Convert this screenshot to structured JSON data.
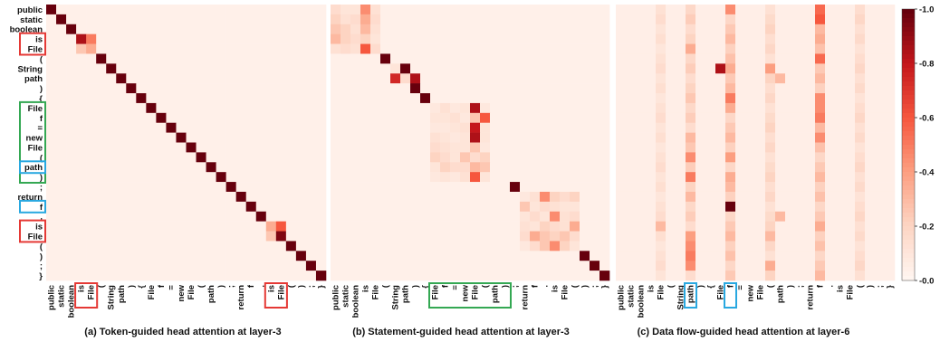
{
  "tokens": [
    "public",
    "static",
    "boolean",
    "is",
    "File",
    "(",
    "String",
    "path",
    ")",
    "{",
    "File",
    "f",
    "=",
    "new",
    "File",
    "(",
    "path",
    ")",
    ";",
    "return",
    "f",
    ".",
    "is",
    "File",
    "(",
    ")",
    ";",
    "}"
  ],
  "colorbar": {
    "ticks": [
      "0.0",
      "0.2",
      "0.4",
      "0.6",
      "0.8",
      "1.0"
    ],
    "colors": [
      "#fff5f0",
      "#fdd4c2",
      "#fc9e80",
      "#f6573e",
      "#c5171c",
      "#67000d"
    ]
  },
  "chart_data": [
    {
      "type": "heatmap",
      "title": "(a) Token-guided head attention at layer-3",
      "x_labels": "tokens",
      "y_labels": "tokens",
      "value_range": [
        0,
        1
      ],
      "background_value": 0.03,
      "cells": [
        [
          0,
          0,
          1.0
        ],
        [
          1,
          1,
          1.0
        ],
        [
          2,
          2,
          1.0
        ],
        [
          3,
          3,
          0.85
        ],
        [
          3,
          4,
          0.5
        ],
        [
          4,
          3,
          0.25
        ],
        [
          4,
          4,
          0.35
        ],
        [
          5,
          5,
          1.0
        ],
        [
          6,
          6,
          1.0
        ],
        [
          7,
          7,
          1.0
        ],
        [
          8,
          8,
          1.0
        ],
        [
          9,
          9,
          1.0
        ],
        [
          10,
          10,
          1.0
        ],
        [
          11,
          11,
          1.0
        ],
        [
          12,
          12,
          1.0
        ],
        [
          13,
          13,
          1.0
        ],
        [
          14,
          14,
          1.0
        ],
        [
          15,
          15,
          1.0
        ],
        [
          16,
          16,
          1.0
        ],
        [
          17,
          17,
          1.0
        ],
        [
          18,
          18,
          1.0
        ],
        [
          19,
          19,
          1.0
        ],
        [
          20,
          20,
          1.0
        ],
        [
          21,
          21,
          1.0
        ],
        [
          22,
          22,
          0.35
        ],
        [
          22,
          23,
          0.6
        ],
        [
          23,
          22,
          0.25
        ],
        [
          23,
          23,
          0.95
        ],
        [
          24,
          24,
          1.0
        ],
        [
          25,
          25,
          1.0
        ],
        [
          26,
          26,
          1.0
        ],
        [
          27,
          27,
          1.0
        ]
      ]
    },
    {
      "type": "heatmap",
      "title": "(b) Statement-guided head attention at layer-3",
      "x_labels": "tokens",
      "y_labels": "tokens",
      "value_range": [
        0,
        1
      ],
      "background_value": 0.03,
      "cells": [
        [
          0,
          0,
          0.15
        ],
        [
          0,
          1,
          0.1
        ],
        [
          0,
          2,
          0.1
        ],
        [
          0,
          3,
          0.45
        ],
        [
          0,
          4,
          0.12
        ],
        [
          1,
          0,
          0.2
        ],
        [
          1,
          1,
          0.12
        ],
        [
          1,
          2,
          0.15
        ],
        [
          1,
          3,
          0.35
        ],
        [
          1,
          4,
          0.15
        ],
        [
          2,
          0,
          0.25
        ],
        [
          2,
          1,
          0.2
        ],
        [
          2,
          2,
          0.12
        ],
        [
          2,
          3,
          0.3
        ],
        [
          2,
          4,
          0.12
        ],
        [
          3,
          0,
          0.3
        ],
        [
          3,
          1,
          0.2
        ],
        [
          3,
          2,
          0.15
        ],
        [
          3,
          3,
          0.2
        ],
        [
          3,
          4,
          0.1
        ],
        [
          4,
          0,
          0.12
        ],
        [
          4,
          1,
          0.15
        ],
        [
          4,
          2,
          0.12
        ],
        [
          4,
          3,
          0.6
        ],
        [
          4,
          4,
          0.15
        ],
        [
          5,
          5,
          1.0
        ],
        [
          6,
          6,
          0.1
        ],
        [
          6,
          7,
          1.0
        ],
        [
          7,
          6,
          0.75
        ],
        [
          7,
          7,
          0.15
        ],
        [
          7,
          8,
          0.85
        ],
        [
          8,
          8,
          1.0
        ],
        [
          9,
          9,
          1.0
        ],
        [
          10,
          10,
          0.08
        ],
        [
          10,
          11,
          0.12
        ],
        [
          10,
          12,
          0.08
        ],
        [
          10,
          13,
          0.1
        ],
        [
          10,
          14,
          0.85
        ],
        [
          10,
          15,
          0.08
        ],
        [
          11,
          10,
          0.1
        ],
        [
          11,
          11,
          0.1
        ],
        [
          11,
          12,
          0.12
        ],
        [
          11,
          13,
          0.08
        ],
        [
          11,
          14,
          0.25
        ],
        [
          11,
          15,
          0.6
        ],
        [
          12,
          10,
          0.08
        ],
        [
          12,
          11,
          0.08
        ],
        [
          12,
          12,
          0.1
        ],
        [
          12,
          13,
          0.12
        ],
        [
          12,
          14,
          0.8
        ],
        [
          12,
          15,
          0.1
        ],
        [
          13,
          10,
          0.12
        ],
        [
          13,
          11,
          0.1
        ],
        [
          13,
          12,
          0.08
        ],
        [
          13,
          13,
          0.1
        ],
        [
          13,
          14,
          0.85
        ],
        [
          13,
          15,
          0.1
        ],
        [
          14,
          10,
          0.15
        ],
        [
          14,
          11,
          0.12
        ],
        [
          14,
          12,
          0.1
        ],
        [
          14,
          13,
          0.1
        ],
        [
          14,
          14,
          0.25
        ],
        [
          14,
          15,
          0.08
        ],
        [
          15,
          10,
          0.2
        ],
        [
          15,
          11,
          0.15
        ],
        [
          15,
          12,
          0.1
        ],
        [
          15,
          13,
          0.25
        ],
        [
          15,
          14,
          0.15
        ],
        [
          15,
          15,
          0.2
        ],
        [
          16,
          10,
          0.1
        ],
        [
          16,
          11,
          0.2
        ],
        [
          16,
          12,
          0.15
        ],
        [
          16,
          13,
          0.15
        ],
        [
          16,
          14,
          0.3
        ],
        [
          16,
          15,
          0.25
        ],
        [
          17,
          10,
          0.08
        ],
        [
          17,
          11,
          0.1
        ],
        [
          17,
          12,
          0.08
        ],
        [
          17,
          13,
          0.12
        ],
        [
          17,
          14,
          0.6
        ],
        [
          17,
          15,
          0.1
        ],
        [
          18,
          18,
          1.0
        ],
        [
          19,
          19,
          0.08
        ],
        [
          19,
          20,
          0.12
        ],
        [
          19,
          21,
          0.45
        ],
        [
          19,
          22,
          0.2
        ],
        [
          19,
          23,
          0.15
        ],
        [
          19,
          24,
          0.2
        ],
        [
          20,
          19,
          0.25
        ],
        [
          20,
          20,
          0.1
        ],
        [
          20,
          21,
          0.15
        ],
        [
          20,
          22,
          0.12
        ],
        [
          20,
          23,
          0.1
        ],
        [
          20,
          24,
          0.1
        ],
        [
          21,
          19,
          0.1
        ],
        [
          21,
          20,
          0.15
        ],
        [
          21,
          21,
          0.1
        ],
        [
          21,
          22,
          0.45
        ],
        [
          21,
          23,
          0.12
        ],
        [
          21,
          24,
          0.15
        ],
        [
          22,
          19,
          0.12
        ],
        [
          22,
          20,
          0.1
        ],
        [
          22,
          21,
          0.2
        ],
        [
          22,
          22,
          0.15
        ],
        [
          22,
          23,
          0.12
        ],
        [
          22,
          24,
          0.35
        ],
        [
          23,
          19,
          0.15
        ],
        [
          23,
          20,
          0.35
        ],
        [
          23,
          21,
          0.25
        ],
        [
          23,
          22,
          0.2
        ],
        [
          23,
          23,
          0.25
        ],
        [
          23,
          24,
          0.15
        ],
        [
          24,
          19,
          0.08
        ],
        [
          24,
          20,
          0.15
        ],
        [
          24,
          21,
          0.25
        ],
        [
          24,
          22,
          0.45
        ],
        [
          24,
          23,
          0.2
        ],
        [
          24,
          24,
          0.1
        ],
        [
          25,
          25,
          1.0
        ],
        [
          26,
          26,
          1.0
        ],
        [
          27,
          27,
          1.0
        ]
      ]
    },
    {
      "type": "heatmap",
      "title": "(c) Data flow-guided head attention at layer-6",
      "x_labels": "tokens",
      "y_labels": "tokens",
      "value_range": [
        0,
        1
      ],
      "background_value": 0.04,
      "columns": [
        {
          "col": 4,
          "value": 0.15
        },
        {
          "col": 7,
          "value": 0.25
        },
        {
          "col": 11,
          "value": 0.3
        },
        {
          "col": 15,
          "value": 0.2
        },
        {
          "col": 20,
          "value": 0.3
        },
        {
          "col": 24,
          "value": 0.18
        }
      ],
      "cells": [
        [
          0,
          11,
          0.45
        ],
        [
          0,
          20,
          0.55
        ],
        [
          1,
          20,
          0.6
        ],
        [
          3,
          20,
          0.35
        ],
        [
          4,
          7,
          0.35
        ],
        [
          5,
          20,
          0.55
        ],
        [
          6,
          11,
          0.35
        ],
        [
          6,
          15,
          0.4
        ],
        [
          7,
          16,
          0.3
        ],
        [
          9,
          11,
          0.5
        ],
        [
          9,
          20,
          0.45
        ],
        [
          10,
          11,
          0.35
        ],
        [
          10,
          20,
          0.45
        ],
        [
          11,
          20,
          0.5
        ],
        [
          13,
          7,
          0.3
        ],
        [
          13,
          20,
          0.45
        ],
        [
          15,
          7,
          0.45
        ],
        [
          15,
          11,
          0.4
        ],
        [
          17,
          7,
          0.5
        ],
        [
          17,
          11,
          0.35
        ],
        [
          20,
          11,
          1.0
        ],
        [
          21,
          16,
          0.3
        ],
        [
          22,
          20,
          0.35
        ],
        [
          23,
          7,
          0.4
        ],
        [
          24,
          7,
          0.45
        ],
        [
          25,
          7,
          0.5
        ],
        [
          26,
          7,
          0.45
        ],
        [
          26,
          15,
          0.35
        ],
        [
          6,
          10,
          0.85
        ],
        [
          22,
          4,
          0.3
        ],
        [
          23,
          15,
          0.3
        ],
        [
          19,
          7,
          0.3
        ]
      ]
    }
  ]
}
